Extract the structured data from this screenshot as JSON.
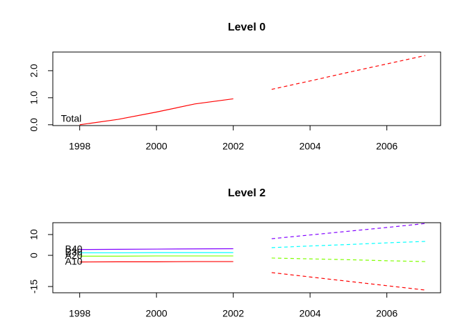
{
  "chart_data": [
    {
      "type": "line",
      "title": "Level 0",
      "x": [
        1998,
        1999,
        2000,
        2001,
        2002,
        2003,
        2004,
        2005,
        2006,
        2007
      ],
      "series": [
        {
          "name": "Total",
          "color": "#ff0000",
          "values": [
            0.0,
            0.2,
            0.47,
            0.77,
            0.96,
            null,
            null,
            null,
            null,
            null
          ],
          "forecast": [
            null,
            null,
            null,
            null,
            null,
            1.31,
            1.62,
            1.94,
            2.25,
            2.56
          ]
        }
      ],
      "xlim": [
        1997.3,
        2007.4
      ],
      "xticks": [
        1998,
        2000,
        2002,
        2004,
        2006
      ],
      "ylim": [
        -0.03,
        2.69
      ],
      "yticks": [
        {
          "value": 0,
          "label": "0.0"
        },
        {
          "value": 1,
          "label": "1.0"
        },
        {
          "value": 2,
          "label": "2.0"
        }
      ]
    },
    {
      "type": "line",
      "title": "Level 2",
      "x": [
        1998,
        1999,
        2000,
        2001,
        2002,
        2003,
        2004,
        2005,
        2006,
        2007
      ],
      "series": [
        {
          "name": "A10",
          "color": "#ff0000",
          "values": [
            -3.2,
            -3.1,
            -3.1,
            -3.0,
            -3.0,
            null,
            null,
            null,
            null,
            null
          ],
          "forecast": [
            null,
            null,
            null,
            null,
            null,
            -8.3,
            -10.4,
            -12.5,
            -14.6,
            -16.7
          ]
        },
        {
          "name": "A20",
          "color": "#80ff00",
          "values": [
            -0.4,
            -0.4,
            -0.3,
            -0.3,
            -0.3,
            null,
            null,
            null,
            null,
            null
          ],
          "forecast": [
            null,
            null,
            null,
            null,
            null,
            -1.3,
            -1.7,
            -2.1,
            -2.6,
            -3.0
          ]
        },
        {
          "name": "B30",
          "color": "#00ffff",
          "values": [
            1.2,
            1.2,
            1.3,
            1.3,
            1.3,
            null,
            null,
            null,
            null,
            null
          ],
          "forecast": [
            null,
            null,
            null,
            null,
            null,
            3.7,
            4.5,
            5.2,
            6.0,
            6.7
          ]
        },
        {
          "name": "B40",
          "color": "#8000ff",
          "values": [
            2.8,
            2.9,
            3.0,
            3.1,
            3.2,
            null,
            null,
            null,
            null,
            null
          ],
          "forecast": [
            null,
            null,
            null,
            null,
            null,
            8.0,
            9.8,
            11.6,
            13.4,
            15.3
          ]
        }
      ],
      "xlim": [
        1997.3,
        2007.4
      ],
      "xticks": [
        1998,
        2000,
        2002,
        2004,
        2006
      ],
      "ylim": [
        -18,
        15.7
      ],
      "yticks": [
        -15,
        0,
        10
      ]
    }
  ]
}
